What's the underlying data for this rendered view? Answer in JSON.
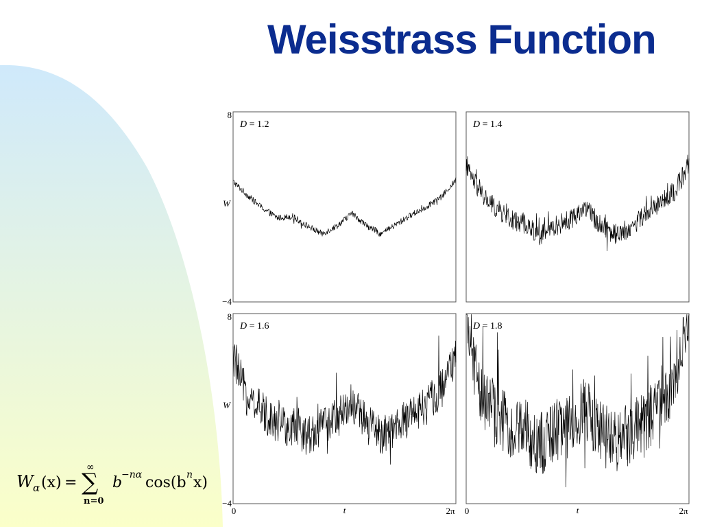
{
  "slide": {
    "title": "Weisstrass Function",
    "formula": {
      "lhs_symbol": "W",
      "lhs_subscript": "α",
      "lhs_arg": "(x)",
      "equals": "=",
      "sum_symbol": "∑",
      "sum_upper": "∞",
      "sum_lower": "n=0",
      "term_base": "b",
      "term_exponent": "−nα",
      "cos_text": "cos(b",
      "cos_exponent": "n",
      "cos_tail": "x)"
    },
    "colors": {
      "title": "#0b2c8f",
      "curve_bg_top": "#cfe9fb",
      "curve_bg_bottom": "#fbffc9",
      "plot_line": "#000000"
    }
  },
  "chart_data": [
    {
      "type": "line",
      "panel": "top-left",
      "annotation": {
        "var": "D",
        "eq": " = ",
        "value": "1.2"
      },
      "dimension": 1.2,
      "x": {
        "label": "",
        "ticks": [],
        "range": [
          0,
          6.283
        ]
      },
      "y": {
        "label": "W",
        "ticks": [
          "8",
          "−4"
        ],
        "range": [
          -4,
          8
        ]
      },
      "series": [
        {
          "values": [
            3.6,
            2.7,
            1.9,
            1.3,
            1.4,
            0.8,
            0.3,
            0.8,
            1.6,
            0.8,
            0.3,
            0.9,
            1.5,
            2.0,
            2.6,
            3.7
          ]
        }
      ]
    },
    {
      "type": "line",
      "panel": "top-right",
      "annotation": {
        "var": "D",
        "eq": " = ",
        "value": "1.4"
      },
      "dimension": 1.4,
      "x": {
        "label": "",
        "ticks": [],
        "range": [
          0,
          6.283
        ]
      },
      "y": {
        "label": "",
        "ticks": [],
        "range": [
          -4,
          8
        ]
      },
      "series": [
        {
          "values": [
            4.5,
            2.8,
            1.9,
            1.2,
            0.9,
            0.2,
            0.8,
            1.2,
            2.0,
            0.9,
            0.3,
            0.6,
            1.5,
            2.2,
            3.0,
            4.6
          ]
        }
      ]
    },
    {
      "type": "line",
      "panel": "bottom-left",
      "annotation": {
        "var": "D",
        "eq": " = ",
        "value": "1.6"
      },
      "dimension": 1.6,
      "x": {
        "label": "t",
        "ticks": [
          "0",
          "2π"
        ],
        "range": [
          0,
          6.283
        ]
      },
      "y": {
        "label": "W",
        "ticks": [
          "8",
          "−4"
        ],
        "range": [
          -4,
          8
        ]
      },
      "series": [
        {
          "values": [
            5.2,
            2.6,
            1.8,
            1.1,
            0.8,
            0.3,
            0.9,
            1.4,
            2.4,
            1.0,
            0.3,
            0.8,
            1.6,
            2.2,
            3.2,
            5.2
          ]
        }
      ]
    },
    {
      "type": "line",
      "panel": "bottom-right",
      "annotation": {
        "var": "D",
        "eq": " = ",
        "value": "1.8"
      },
      "dimension": 1.8,
      "x": {
        "label": "t",
        "ticks": [
          "0",
          "2π"
        ],
        "range": [
          0,
          6.283
        ]
      },
      "y": {
        "label": "",
        "ticks": [],
        "range": [
          -4,
          8
        ]
      },
      "series": [
        {
          "values": [
            7.5,
            2.8,
            1.5,
            0.8,
            0.5,
            -0.3,
            0.6,
            1.0,
            2.0,
            0.6,
            -0.2,
            0.5,
            1.2,
            2.0,
            3.2,
            7.8
          ]
        }
      ]
    }
  ]
}
